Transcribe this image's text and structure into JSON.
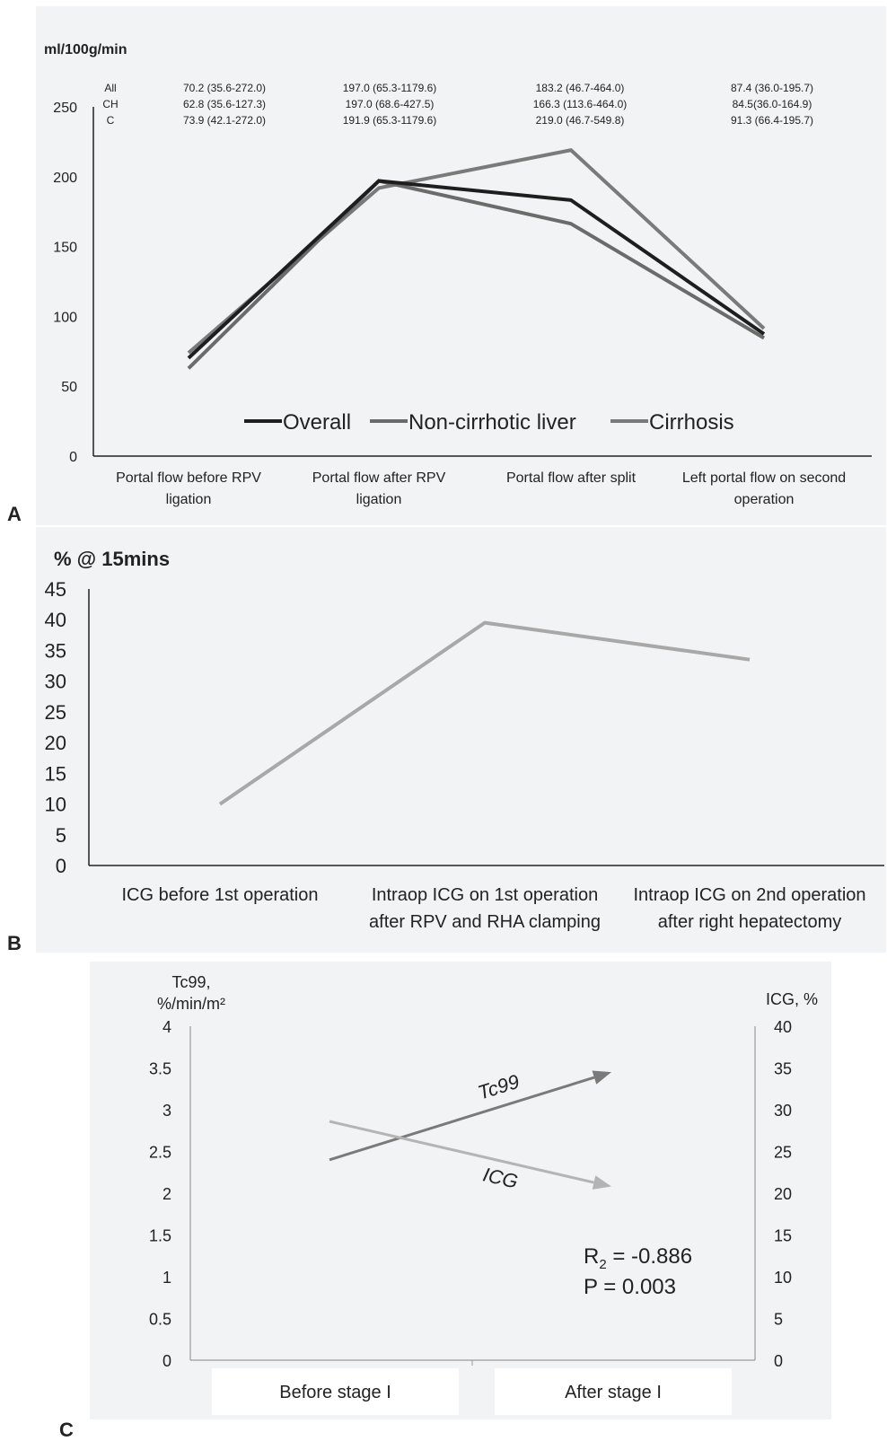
{
  "chart_data": [
    {
      "panel_label": "A",
      "type": "line",
      "ylabel": "ml/100g/min",
      "ylim": [
        0,
        250
      ],
      "yticks": [
        "0",
        "50",
        "100",
        "150",
        "200",
        "250"
      ],
      "categories": [
        [
          "Portal flow before RPV",
          "ligation"
        ],
        [
          "Portal flow after RPV",
          "ligation"
        ],
        [
          "Portal flow after split",
          ""
        ],
        [
          "Left portal flow on second",
          "operation"
        ]
      ],
      "series": [
        {
          "name": "Overall",
          "values": [
            70.2,
            197.0,
            183.2,
            87.4
          ],
          "color": "#1e1e1e"
        },
        {
          "name": "Non-cirrhotic liver",
          "values": [
            62.8,
            197.0,
            166.3,
            84.5
          ],
          "color": "#6b6b6b"
        },
        {
          "name": "Cirrhosis",
          "values": [
            73.9,
            191.9,
            219.0,
            91.3
          ],
          "color": "#7a7a7a"
        }
      ],
      "table": {
        "row_labels": [
          "All",
          "CH",
          "C"
        ],
        "cells": [
          [
            "70.2 (35.6-272.0)",
            "197.0 (65.3-1179.6)",
            "183.2 (46.7-464.0)",
            "87.4 (36.0-195.7)"
          ],
          [
            "62.8 (35.6-127.3)",
            "197.0 (68.6-427.5)",
            "166.3 (113.6-464.0)",
            "84.5(36.0-164.9)"
          ],
          [
            "73.9 (42.1-272.0)",
            "191.9 (65.3-1179.6)",
            "219.0 (46.7-549.8)",
            "91.3 (66.4-195.7)"
          ]
        ]
      },
      "legend_position": "bottom-center"
    },
    {
      "panel_label": "B",
      "type": "line",
      "ylabel": "% @ 15mins",
      "ylim": [
        0,
        45
      ],
      "yticks": [
        "0",
        "5",
        "10",
        "15",
        "20",
        "25",
        "30",
        "35",
        "40",
        "45"
      ],
      "categories": [
        [
          "ICG before 1st operation",
          ""
        ],
        [
          "Intraop ICG  on 1st operation",
          "after RPV and RHA clamping"
        ],
        [
          "Intraop ICG on 2nd operation",
          "after right hepatectomy"
        ]
      ],
      "series": [
        {
          "values": [
            10,
            39.5,
            33.5
          ],
          "color": "#a8a8a8"
        }
      ]
    },
    {
      "panel_label": "C",
      "type": "line",
      "ylabel_left": [
        "Tc99,",
        "%/min/m²"
      ],
      "ylabel_right": "ICG, %",
      "ylim_left": [
        0,
        4
      ],
      "ylim_right": [
        0,
        40
      ],
      "yticks_left": [
        "0",
        "0.5",
        "1",
        "1.5",
        "2",
        "2.5",
        "3",
        "3.5",
        "4"
      ],
      "yticks_right": [
        "0",
        "5",
        "10",
        "15",
        "20",
        "25",
        "30",
        "35",
        "40"
      ],
      "categories": [
        "Before stage I",
        "After stage I"
      ],
      "series": [
        {
          "name": "Tc99",
          "axis": "left",
          "values": [
            2.4,
            3.45
          ],
          "color": "#7a7a7a"
        },
        {
          "name": "ICG",
          "axis": "right",
          "values": [
            28.6,
            20.8
          ],
          "color": "#b4b4b4"
        }
      ],
      "annotation": {
        "r_text": "R",
        "r_sub": "2",
        "r_value": " = -0.886",
        "p_text": "P = 0.003"
      }
    }
  ]
}
